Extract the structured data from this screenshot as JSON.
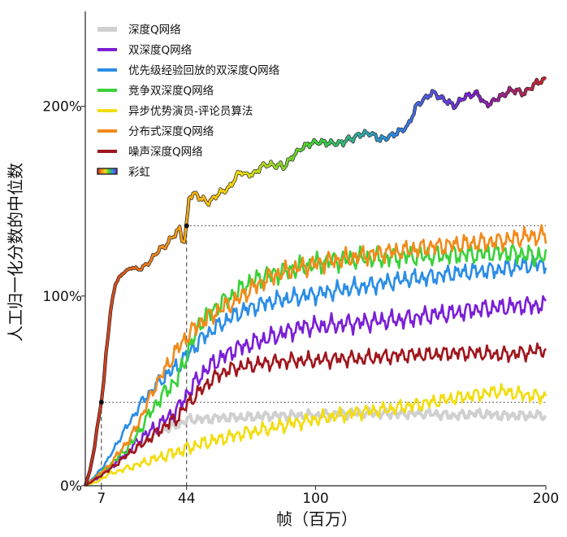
{
  "chart_data": {
    "type": "line",
    "xlabel": "帧（百万）",
    "ylabel": "人工归一化分数的中位数",
    "xlim": [
      0,
      200
    ],
    "ylim": [
      0,
      250
    ],
    "x_ticks": [
      {
        "value": 7,
        "label": "7"
      },
      {
        "value": 44,
        "label": "44"
      },
      {
        "value": 100,
        "label": "100"
      },
      {
        "value": 200,
        "label": "200"
      }
    ],
    "y_ticks": [
      {
        "value": 0,
        "label": "0%"
      },
      {
        "value": 100,
        "label": "100%"
      },
      {
        "value": 200,
        "label": "200%"
      }
    ],
    "legend_position": "top-left",
    "reference_lines": [
      {
        "y": 44,
        "x_from": 7,
        "x_to": 200
      },
      {
        "y": 137,
        "x_from": 44,
        "x_to": 200
      }
    ],
    "reference_drops": [
      {
        "x": 7,
        "y": 44
      },
      {
        "x": 44,
        "y": 137
      }
    ],
    "series": [
      {
        "name": "深度Q网络",
        "color": "#d0d0d0",
        "points": [
          [
            0,
            0
          ],
          [
            5,
            5
          ],
          [
            10,
            10
          ],
          [
            15,
            14
          ],
          [
            20,
            18
          ],
          [
            25,
            22
          ],
          [
            30,
            27
          ],
          [
            35,
            30
          ],
          [
            40,
            32
          ],
          [
            45,
            35
          ],
          [
            50,
            35
          ],
          [
            60,
            36
          ],
          [
            70,
            36
          ],
          [
            80,
            37
          ],
          [
            90,
            37
          ],
          [
            100,
            37
          ],
          [
            110,
            38
          ],
          [
            120,
            38
          ],
          [
            130,
            38
          ],
          [
            140,
            38
          ],
          [
            150,
            38
          ],
          [
            160,
            37
          ],
          [
            170,
            38
          ],
          [
            180,
            37
          ],
          [
            190,
            37
          ],
          [
            200,
            37
          ]
        ]
      },
      {
        "name": "双深度Q网络",
        "color": "#7b1fd6",
        "points": [
          [
            0,
            0
          ],
          [
            5,
            4
          ],
          [
            10,
            9
          ],
          [
            15,
            14
          ],
          [
            20,
            20
          ],
          [
            25,
            26
          ],
          [
            30,
            30
          ],
          [
            35,
            35
          ],
          [
            40,
            40
          ],
          [
            45,
            50
          ],
          [
            50,
            58
          ],
          [
            55,
            64
          ],
          [
            60,
            68
          ],
          [
            65,
            72
          ],
          [
            70,
            74
          ],
          [
            75,
            76
          ],
          [
            80,
            78
          ],
          [
            85,
            80
          ],
          [
            90,
            82
          ],
          [
            95,
            84
          ],
          [
            100,
            84
          ],
          [
            110,
            85
          ],
          [
            120,
            86
          ],
          [
            130,
            87
          ],
          [
            140,
            88
          ],
          [
            150,
            90
          ],
          [
            160,
            91
          ],
          [
            170,
            93
          ],
          [
            180,
            94
          ],
          [
            190,
            95
          ],
          [
            200,
            95
          ]
        ]
      },
      {
        "name": "优先级经验回放的双深度Q网络",
        "color": "#2b8de6",
        "points": [
          [
            0,
            0
          ],
          [
            5,
            6
          ],
          [
            10,
            14
          ],
          [
            15,
            25
          ],
          [
            20,
            35
          ],
          [
            25,
            45
          ],
          [
            30,
            52
          ],
          [
            35,
            58
          ],
          [
            40,
            63
          ],
          [
            45,
            70
          ],
          [
            50,
            77
          ],
          [
            55,
            82
          ],
          [
            60,
            86
          ],
          [
            65,
            90
          ],
          [
            70,
            93
          ],
          [
            75,
            95
          ],
          [
            80,
            97
          ],
          [
            90,
            99
          ],
          [
            100,
            101
          ],
          [
            110,
            103
          ],
          [
            120,
            105
          ],
          [
            130,
            107
          ],
          [
            140,
            109
          ],
          [
            150,
            110
          ],
          [
            160,
            112
          ],
          [
            170,
            113
          ],
          [
            180,
            114
          ],
          [
            190,
            116
          ],
          [
            200,
            117
          ]
        ]
      },
      {
        "name": "竞争双深度Q网络",
        "color": "#3ad13a",
        "points": [
          [
            0,
            0
          ],
          [
            5,
            5
          ],
          [
            10,
            10
          ],
          [
            15,
            16
          ],
          [
            20,
            22
          ],
          [
            25,
            32
          ],
          [
            30,
            42
          ],
          [
            35,
            50
          ],
          [
            40,
            56
          ],
          [
            45,
            72
          ],
          [
            50,
            86
          ],
          [
            55,
            92
          ],
          [
            60,
            97
          ],
          [
            65,
            101
          ],
          [
            70,
            106
          ],
          [
            75,
            109
          ],
          [
            80,
            111
          ],
          [
            90,
            114
          ],
          [
            100,
            117
          ],
          [
            110,
            119
          ],
          [
            120,
            120
          ],
          [
            130,
            120
          ],
          [
            140,
            121
          ],
          [
            150,
            121
          ],
          [
            160,
            122
          ],
          [
            170,
            122
          ],
          [
            180,
            123
          ],
          [
            190,
            122
          ],
          [
            200,
            120
          ]
        ]
      },
      {
        "name": "异步优势演员-评论员算法",
        "color": "#f2dd10",
        "points": [
          [
            0,
            0
          ],
          [
            5,
            2
          ],
          [
            10,
            6
          ],
          [
            15,
            8
          ],
          [
            20,
            10
          ],
          [
            25,
            12
          ],
          [
            30,
            14
          ],
          [
            35,
            16
          ],
          [
            40,
            18
          ],
          [
            45,
            20
          ],
          [
            50,
            22
          ],
          [
            60,
            25
          ],
          [
            70,
            28
          ],
          [
            80,
            30
          ],
          [
            90,
            33
          ],
          [
            100,
            35
          ],
          [
            110,
            37
          ],
          [
            120,
            39
          ],
          [
            130,
            40
          ],
          [
            140,
            42
          ],
          [
            150,
            44
          ],
          [
            160,
            46
          ],
          [
            170,
            48
          ],
          [
            180,
            50
          ],
          [
            190,
            48
          ],
          [
            200,
            47
          ]
        ]
      },
      {
        "name": "分布式深度Q网络",
        "color": "#f28a1a",
        "points": [
          [
            0,
            0
          ],
          [
            5,
            5
          ],
          [
            10,
            10
          ],
          [
            15,
            18
          ],
          [
            20,
            26
          ],
          [
            25,
            38
          ],
          [
            30,
            52
          ],
          [
            35,
            62
          ],
          [
            40,
            72
          ],
          [
            45,
            80
          ],
          [
            50,
            86
          ],
          [
            55,
            90
          ],
          [
            60,
            94
          ],
          [
            65,
            97
          ],
          [
            70,
            102
          ],
          [
            75,
            106
          ],
          [
            80,
            110
          ],
          [
            90,
            114
          ],
          [
            100,
            117
          ],
          [
            110,
            119
          ],
          [
            120,
            121
          ],
          [
            130,
            123
          ],
          [
            140,
            124
          ],
          [
            150,
            126
          ],
          [
            160,
            127
          ],
          [
            170,
            128
          ],
          [
            180,
            129
          ],
          [
            190,
            131
          ],
          [
            200,
            132
          ]
        ]
      },
      {
        "name": "噪声深度Q网络",
        "color": "#a0161d",
        "points": [
          [
            0,
            0
          ],
          [
            5,
            4
          ],
          [
            10,
            8
          ],
          [
            15,
            13
          ],
          [
            20,
            18
          ],
          [
            25,
            22
          ],
          [
            30,
            27
          ],
          [
            35,
            32
          ],
          [
            40,
            36
          ],
          [
            45,
            44
          ],
          [
            50,
            50
          ],
          [
            55,
            56
          ],
          [
            60,
            60
          ],
          [
            65,
            62
          ],
          [
            70,
            63
          ],
          [
            75,
            64
          ],
          [
            80,
            65
          ],
          [
            90,
            66
          ],
          [
            100,
            66
          ],
          [
            110,
            67
          ],
          [
            120,
            67
          ],
          [
            130,
            68
          ],
          [
            140,
            69
          ],
          [
            150,
            69
          ],
          [
            160,
            70
          ],
          [
            170,
            70
          ],
          [
            180,
            69
          ],
          [
            190,
            70
          ],
          [
            200,
            72
          ]
        ]
      },
      {
        "name": "彩虹",
        "color": "rainbow",
        "points": [
          [
            0,
            0
          ],
          [
            2,
            8
          ],
          [
            4,
            20
          ],
          [
            5,
            30
          ],
          [
            7,
            44
          ],
          [
            8,
            55
          ],
          [
            9,
            70
          ],
          [
            10,
            80
          ],
          [
            11,
            92
          ],
          [
            12,
            100
          ],
          [
            13,
            106
          ],
          [
            14,
            108
          ],
          [
            15,
            110
          ],
          [
            16,
            112
          ],
          [
            18,
            113
          ],
          [
            20,
            115
          ],
          [
            22,
            114
          ],
          [
            25,
            115
          ],
          [
            28,
            118
          ],
          [
            30,
            122
          ],
          [
            33,
            125
          ],
          [
            36,
            128
          ],
          [
            39,
            133
          ],
          [
            41,
            136
          ],
          [
            42,
            130
          ],
          [
            43,
            129
          ],
          [
            44,
            137
          ],
          [
            45,
            152
          ],
          [
            48,
            154
          ],
          [
            50,
            152
          ],
          [
            53,
            149
          ],
          [
            56,
            152
          ],
          [
            60,
            155
          ],
          [
            63,
            158
          ],
          [
            65,
            162
          ],
          [
            68,
            166
          ],
          [
            70,
            164
          ],
          [
            73,
            164
          ],
          [
            76,
            168
          ],
          [
            80,
            169
          ],
          [
            83,
            169
          ],
          [
            86,
            168
          ],
          [
            90,
            174
          ],
          [
            94,
            178
          ],
          [
            98,
            180
          ],
          [
            102,
            181
          ],
          [
            106,
            181
          ],
          [
            108,
            181
          ],
          [
            112,
            181
          ],
          [
            115,
            183
          ],
          [
            120,
            185
          ],
          [
            124,
            186
          ],
          [
            128,
            183
          ],
          [
            132,
            184
          ],
          [
            136,
            186
          ],
          [
            140,
            189
          ],
          [
            144,
            201
          ],
          [
            148,
            205
          ],
          [
            150,
            207
          ],
          [
            153,
            206
          ],
          [
            156,
            203
          ],
          [
            160,
            200
          ],
          [
            163,
            203
          ],
          [
            166,
            206
          ],
          [
            170,
            207
          ],
          [
            173,
            202
          ],
          [
            176,
            201
          ],
          [
            180,
            205
          ],
          [
            183,
            207
          ],
          [
            186,
            209
          ],
          [
            189,
            207
          ],
          [
            192,
            208
          ],
          [
            196,
            212
          ],
          [
            200,
            214
          ]
        ]
      }
    ]
  }
}
